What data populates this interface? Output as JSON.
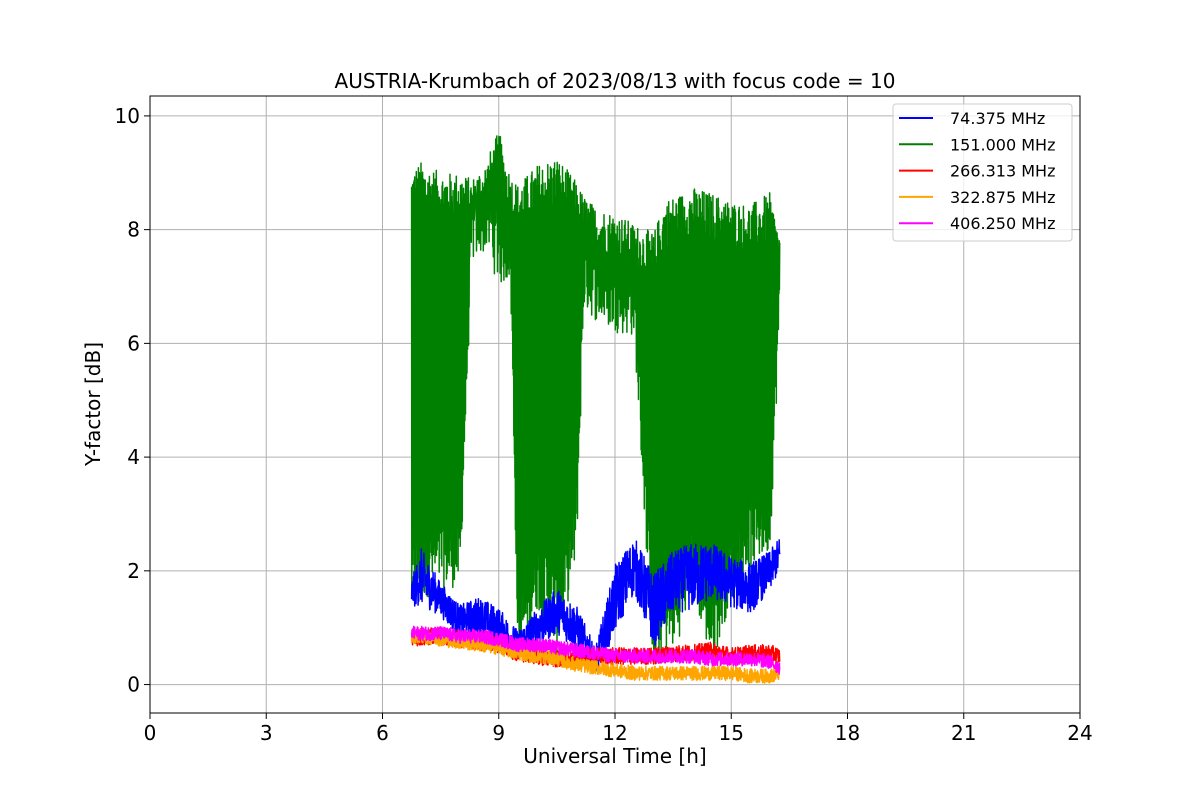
{
  "chart_data": {
    "type": "line",
    "title": "AUSTRIA-Krumbach of 2023/08/13 with focus code = 10",
    "xlabel": "Universal Time [h]",
    "ylabel": "Y-factor [dB]",
    "xlim": [
      0,
      24
    ],
    "ylim": [
      -0.5,
      10.35
    ],
    "xticks": [
      0,
      3,
      6,
      9,
      12,
      15,
      18,
      21,
      24
    ],
    "xtick_labels": [
      "0",
      "3",
      "6",
      "9",
      "12",
      "15",
      "18",
      "21",
      "24"
    ],
    "yticks": [
      0,
      2,
      4,
      6,
      8,
      10
    ],
    "ytick_labels": [
      "0",
      "2",
      "4",
      "6",
      "8",
      "10"
    ],
    "grid": true,
    "legend_position": "top-right",
    "series": [
      {
        "name": "74.375 MHz",
        "legend_label": "  74.375 MHz",
        "color": "#0000ff",
        "x": [
          6.75,
          7.0,
          7.5,
          8.0,
          8.5,
          9.0,
          9.5,
          10.0,
          10.5,
          11.0,
          11.5,
          12.0,
          12.5,
          13.0,
          13.5,
          14.0,
          14.5,
          15.0,
          15.5,
          16.0,
          16.25
        ],
        "y": [
          1.6,
          1.9,
          1.5,
          1.1,
          1.2,
          1.0,
          0.7,
          1.0,
          1.3,
          1.0,
          0.4,
          1.5,
          2.1,
          1.3,
          1.8,
          1.9,
          2.0,
          1.8,
          1.7,
          2.0,
          2.3
        ],
        "band": [
          0.5,
          1.0,
          0.6,
          0.6,
          0.7,
          0.7,
          0.5,
          0.7,
          0.8,
          0.8,
          0.5,
          1.2,
          1.0,
          1.3,
          1.1,
          1.2,
          1.0,
          0.9,
          0.9,
          0.7,
          0.6
        ]
      },
      {
        "name": "151.000 MHz",
        "legend_label": "151.000 MHz",
        "color": "#008000",
        "x": [
          6.75,
          7.0,
          7.5,
          8.0,
          8.3,
          8.7,
          9.0,
          9.3,
          9.5,
          10.0,
          10.5,
          11.0,
          11.2,
          11.5,
          12.0,
          12.5,
          13.0,
          13.3,
          13.6,
          14.0,
          14.5,
          15.0,
          15.5,
          16.0,
          16.25
        ],
        "y_high": [
          8.6,
          8.7,
          8.6,
          8.6,
          8.5,
          8.8,
          9.2,
          8.6,
          8.4,
          8.7,
          8.8,
          8.4,
          8.2,
          8.0,
          7.9,
          7.7,
          7.5,
          8.1,
          8.2,
          8.3,
          8.2,
          8.1,
          8.0,
          8.2,
          7.6
        ],
        "y_low": [
          1.8,
          2.2,
          2.3,
          2.3,
          8.0,
          8.3,
          7.8,
          7.7,
          0.9,
          2.0,
          1.3,
          2.8,
          7.2,
          7.0,
          6.8,
          6.7,
          0.7,
          1.2,
          1.3,
          2.3,
          1.0,
          2.1,
          2.7,
          3.0,
          6.8
        ],
        "band": [
          1.0,
          1.0,
          0.8,
          0.8,
          0.8,
          0.9,
          1.1,
          0.8,
          0.8,
          0.9,
          1.0,
          0.9,
          0.8,
          0.8,
          0.8,
          0.8,
          0.9,
          0.9,
          0.8,
          0.9,
          0.9,
          0.8,
          0.9,
          0.9,
          0.6
        ]
      },
      {
        "name": "266.313 MHz",
        "legend_label": "266.313 MHz",
        "color": "#ff0000",
        "x": [
          6.75,
          7.0,
          7.5,
          8.0,
          8.5,
          9.0,
          9.5,
          10.0,
          10.5,
          11.0,
          11.5,
          12.0,
          12.5,
          13.0,
          13.5,
          14.0,
          14.5,
          15.0,
          15.5,
          16.0,
          16.25
        ],
        "y": [
          0.8,
          0.85,
          0.85,
          0.8,
          0.75,
          0.7,
          0.55,
          0.5,
          0.45,
          0.4,
          0.5,
          0.5,
          0.5,
          0.5,
          0.55,
          0.55,
          0.6,
          0.5,
          0.55,
          0.55,
          0.5
        ],
        "band": [
          0.3,
          0.3,
          0.3,
          0.3,
          0.3,
          0.3,
          0.3,
          0.3,
          0.3,
          0.3,
          0.3,
          0.3,
          0.3,
          0.3,
          0.3,
          0.3,
          0.3,
          0.3,
          0.3,
          0.3,
          0.3
        ]
      },
      {
        "name": "322.875 MHz",
        "legend_label": "322.875 MHz",
        "color": "#ffa500",
        "x": [
          6.75,
          7.0,
          7.5,
          8.0,
          8.5,
          9.0,
          9.5,
          10.0,
          10.5,
          11.0,
          11.5,
          12.0,
          12.5,
          13.0,
          13.5,
          14.0,
          14.5,
          15.0,
          15.5,
          16.0,
          16.25
        ],
        "y": [
          0.85,
          0.85,
          0.8,
          0.75,
          0.7,
          0.65,
          0.55,
          0.5,
          0.45,
          0.35,
          0.3,
          0.25,
          0.2,
          0.2,
          0.2,
          0.2,
          0.2,
          0.2,
          0.15,
          0.15,
          0.2
        ],
        "band": [
          0.25,
          0.25,
          0.25,
          0.25,
          0.25,
          0.25,
          0.25,
          0.25,
          0.25,
          0.25,
          0.25,
          0.25,
          0.25,
          0.25,
          0.25,
          0.25,
          0.25,
          0.25,
          0.25,
          0.25,
          0.25
        ]
      },
      {
        "name": "406.250 MHz",
        "legend_label": "406.250 MHz",
        "color": "#ff00ff",
        "x": [
          6.75,
          7.0,
          7.5,
          8.0,
          8.5,
          9.0,
          9.5,
          10.0,
          10.5,
          11.0,
          11.5,
          12.0,
          12.5,
          13.0,
          13.5,
          14.0,
          14.5,
          15.0,
          15.5,
          16.0,
          16.25
        ],
        "y": [
          0.9,
          0.9,
          0.9,
          0.85,
          0.85,
          0.8,
          0.7,
          0.7,
          0.65,
          0.6,
          0.55,
          0.5,
          0.5,
          0.5,
          0.5,
          0.5,
          0.45,
          0.45,
          0.45,
          0.4,
          0.3
        ],
        "band": [
          0.25,
          0.25,
          0.25,
          0.25,
          0.25,
          0.25,
          0.25,
          0.25,
          0.25,
          0.25,
          0.25,
          0.25,
          0.25,
          0.25,
          0.25,
          0.25,
          0.25,
          0.25,
          0.25,
          0.25,
          0.25
        ]
      }
    ]
  }
}
